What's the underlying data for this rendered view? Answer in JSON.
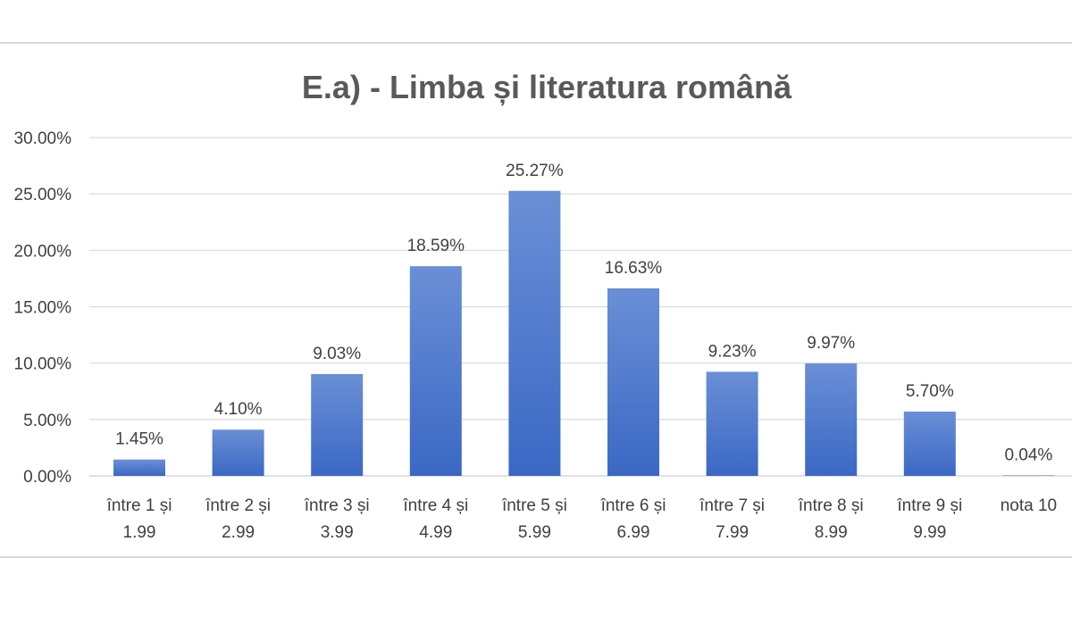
{
  "chart_data": {
    "type": "bar",
    "title": "E.a) - Limba și literatura română",
    "xlabel": "",
    "ylabel": "",
    "ylim": [
      0,
      30
    ],
    "yticks": [
      "0.00%",
      "5.00%",
      "10.00%",
      "15.00%",
      "20.00%",
      "25.00%",
      "30.00%"
    ],
    "ytick_values": [
      0,
      5,
      10,
      15,
      20,
      25,
      30
    ],
    "grid": true,
    "legend": "none",
    "bar_color_top": "#6a8fd6",
    "bar_color_bottom": "#3a68c4",
    "categories": [
      [
        "între 1 și",
        "1.99"
      ],
      [
        "între 2 și",
        "2.99"
      ],
      [
        "între 3  și",
        "3.99"
      ],
      [
        "între 4 și",
        "4.99"
      ],
      [
        "între 5 și",
        "5.99"
      ],
      [
        "între 6 și",
        "6.99"
      ],
      [
        "între 7 și",
        "7.99"
      ],
      [
        "între 8 și",
        "8.99"
      ],
      [
        "între 9 și",
        "9.99"
      ],
      [
        "nota 10"
      ]
    ],
    "values": [
      1.45,
      4.1,
      9.03,
      18.59,
      25.27,
      16.63,
      9.23,
      9.97,
      5.7,
      0.04
    ],
    "data_labels": [
      "1.45%",
      "4.10%",
      "9.03%",
      "18.59%",
      "25.27%",
      "16.63%",
      "9.23%",
      "9.97%",
      "5.70%",
      "0.04%"
    ]
  }
}
